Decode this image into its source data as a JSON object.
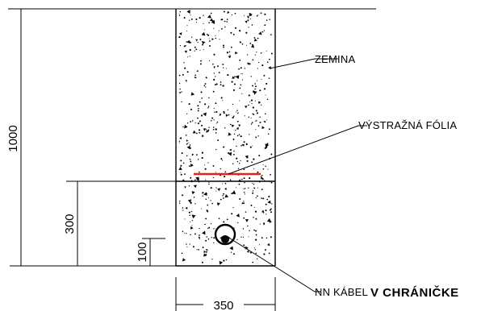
{
  "labels": {
    "soil": "ZEMINA",
    "warning_foil": "VÝSTRAŽNÁ FÓLIA",
    "cable_prefix": "NN KÁBEL",
    "cable_suffix": "V  CHRÁNIČKE"
  },
  "dimensions": {
    "total_depth": "1000",
    "foil_depth": "300",
    "cable_depth": "100",
    "trench_width": "350"
  },
  "colors": {
    "line": "#000000",
    "warning_foil": "#e8201c",
    "background": "#ffffff"
  }
}
